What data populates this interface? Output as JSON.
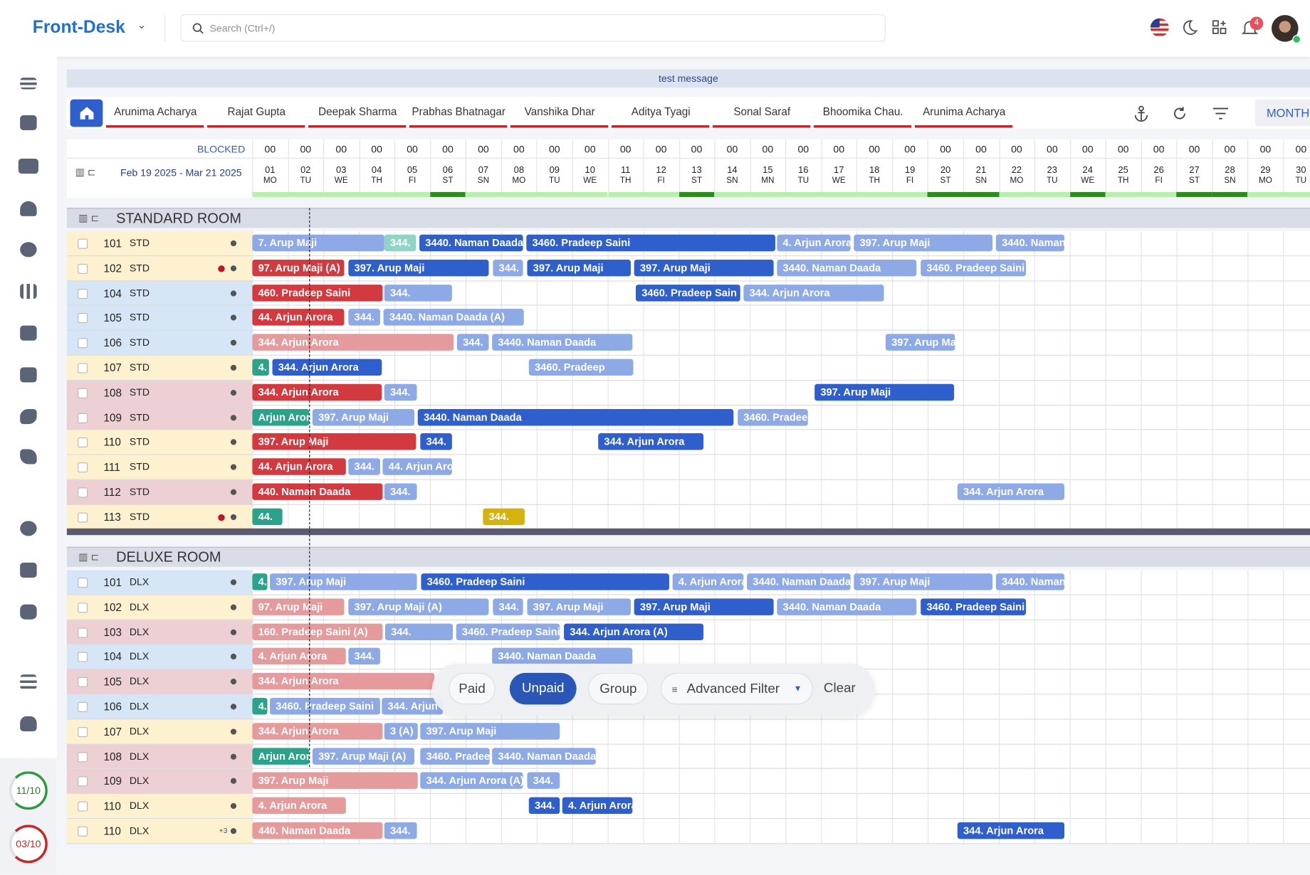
{
  "header": {
    "title": "Front-Desk",
    "search_placeholder": "Search (Ctrl+/)",
    "notifications": "4"
  },
  "message": "test message",
  "tabs": [
    "Arunima Acharya",
    "Rajat Gupta",
    "Deepak Sharma",
    "Prabhas Bhatnagar",
    "Vanshika Dhar",
    "Aditya Tyagi",
    "Sonal Saraf",
    "Bhoomika Chau.",
    "Arunima Acharya"
  ],
  "view_button": "MONTH",
  "calendar": {
    "blocked_label": "BLOCKED",
    "date_range": "Feb 19 2025 - Mar 21 2025",
    "days": [
      {
        "blocked": "00",
        "date": "01",
        "weekday": "MO"
      },
      {
        "blocked": "00",
        "date": "02",
        "weekday": "TU"
      },
      {
        "blocked": "00",
        "date": "03",
        "weekday": "WE"
      },
      {
        "blocked": "00",
        "date": "04",
        "weekday": "TH"
      },
      {
        "blocked": "00",
        "date": "05",
        "weekday": "FI"
      },
      {
        "blocked": "00",
        "date": "06",
        "weekday": "ST"
      },
      {
        "blocked": "00",
        "date": "07",
        "weekday": "SN"
      },
      {
        "blocked": "00",
        "date": "08",
        "weekday": "MO"
      },
      {
        "blocked": "00",
        "date": "09",
        "weekday": "TU"
      },
      {
        "blocked": "00",
        "date": "10",
        "weekday": "WE"
      },
      {
        "blocked": "00",
        "date": "11",
        "weekday": "TH"
      },
      {
        "blocked": "00",
        "date": "12",
        "weekday": "FI"
      },
      {
        "blocked": "00",
        "date": "13",
        "weekday": "ST"
      },
      {
        "blocked": "00",
        "date": "14",
        "weekday": "SN"
      },
      {
        "blocked": "00",
        "date": "15",
        "weekday": "MN"
      },
      {
        "blocked": "00",
        "date": "16",
        "weekday": "TU"
      },
      {
        "blocked": "00",
        "date": "17",
        "weekday": "WE"
      },
      {
        "blocked": "00",
        "date": "18",
        "weekday": "TH"
      },
      {
        "blocked": "00",
        "date": "19",
        "weekday": "FI"
      },
      {
        "blocked": "00",
        "date": "20",
        "weekday": "ST"
      },
      {
        "blocked": "00",
        "date": "21",
        "weekday": "SN"
      },
      {
        "blocked": "00",
        "date": "22",
        "weekday": "MO"
      },
      {
        "blocked": "00",
        "date": "23",
        "weekday": "TU"
      },
      {
        "blocked": "00",
        "date": "24",
        "weekday": "WE"
      },
      {
        "blocked": "00",
        "date": "25",
        "weekday": "TH"
      },
      {
        "blocked": "00",
        "date": "26",
        "weekday": "FI"
      },
      {
        "blocked": "00",
        "date": "27",
        "weekday": "ST"
      },
      {
        "blocked": "00",
        "date": "28",
        "weekday": "SN"
      },
      {
        "blocked": "00",
        "date": "29",
        "weekday": "MO"
      },
      {
        "blocked": "00",
        "date": "30",
        "weekday": "TU"
      }
    ]
  },
  "room_groups": [
    {
      "title": "STANDARD ROOM",
      "rooms": [
        {
          "number": "101",
          "type": "STD",
          "bookings": [
            "7. Arup Maji",
            "344.",
            "3440. Naman Daada",
            "3460. Pradeep Saini",
            "4. Arjun Arora",
            "397. Arup Maji",
            "3440. Naman"
          ]
        },
        {
          "number": "102",
          "type": "STD",
          "bookings": [
            "97. Arup Maji (A)",
            "397. Arup Maji",
            "344.",
            "397. Arup Maji",
            "397. Arup Maji",
            "3440. Naman Daada",
            "3460. Pradeep Saini"
          ]
        },
        {
          "number": "104",
          "type": "STD",
          "bookings": [
            "460. Pradeep Saini",
            "344.",
            "3460. Pradeep Sain",
            "344. Arjun Arora"
          ]
        },
        {
          "number": "105",
          "type": "STD",
          "bookings": [
            "44. Arjun Arora",
            "344.",
            "3440. Naman Daada (A)"
          ]
        },
        {
          "number": "106",
          "type": "STD",
          "bookings": [
            "344. Arjun Arora",
            "344.",
            "3440. Naman Daada",
            "397. Arup Ma"
          ]
        },
        {
          "number": "107",
          "type": "STD",
          "bookings": [
            "4.",
            "344. Arjun Arora",
            "3460. Pradeep"
          ]
        },
        {
          "number": "108",
          "type": "STD",
          "bookings": [
            "344. Arjun Arora",
            "344.",
            "397. Arup Maji"
          ]
        },
        {
          "number": "109",
          "type": "STD",
          "bookings": [
            "Arjun Arora",
            "397. Arup Maji",
            "3440. Naman Daada",
            "3460. Pradee"
          ]
        },
        {
          "number": "110",
          "type": "STD",
          "bookings": [
            "397. Arup Maji",
            "344.",
            "344. Arjun Arora"
          ]
        },
        {
          "number": "111",
          "type": "STD",
          "bookings": [
            "44. Arjun Arora",
            "344.",
            "44. Arjun Arora"
          ]
        },
        {
          "number": "112",
          "type": "STD",
          "bookings": [
            "440. Naman Daada",
            "344.",
            "344. Arjun Arora"
          ]
        },
        {
          "number": "113",
          "type": "STD",
          "bookings": [
            "44.",
            "344."
          ]
        }
      ]
    },
    {
      "title": "DELUXE ROOM",
      "rooms": [
        {
          "number": "101",
          "type": "DLX",
          "bookings": [
            "4.",
            "397. Arup Maji",
            "3460. Pradeep Saini",
            "4. Arjun Arora",
            "3440. Naman Daada",
            "397. Arup Maji",
            "3440. Naman"
          ]
        },
        {
          "number": "102",
          "type": "DLX",
          "bookings": [
            "97. Arup Maji",
            "397. Arup Maji (A)",
            "344.",
            "397. Arup Maji",
            "397. Arup Maji",
            "3440. Naman Daada",
            "3460. Pradeep Saini"
          ]
        },
        {
          "number": "103",
          "type": "DLX",
          "bookings": [
            "160. Pradeep Saini (A)",
            "344.",
            "3460. Pradeep Saini",
            "344. Arjun Arora (A)"
          ]
        },
        {
          "number": "104",
          "type": "DLX",
          "bookings": [
            "4. Arjun Arora",
            "344.",
            "3440. Naman Daada"
          ]
        },
        {
          "number": "105",
          "type": "DLX",
          "bookings": [
            "344. Arjun Arora"
          ]
        },
        {
          "number": "106",
          "type": "DLX",
          "bookings": [
            "4.",
            "3460. Pradeep Saini",
            "344. Arjun"
          ]
        },
        {
          "number": "107",
          "type": "DLX",
          "bookings": [
            "344. Arjun Arora",
            "3 (A)",
            "397. Arup Maji"
          ]
        },
        {
          "number": "108",
          "type": "DLX",
          "bookings": [
            "Arjun Arora",
            "397. Arup Maji (A)",
            "3460. Pradee",
            "3440. Naman Daada"
          ]
        },
        {
          "number": "109",
          "type": "DLX",
          "bookings": [
            "397. Arup Maji",
            "344. Arjun Arora (A)",
            "344."
          ]
        },
        {
          "number": "110",
          "type": "DLX",
          "bookings": [
            "4. Arjun Arora",
            "344.",
            "4. Arjun Arora"
          ]
        },
        {
          "number": "110",
          "type": "DLX",
          "extra": "+3",
          "bookings": [
            "440. Naman Daada",
            "344.",
            "344. Arjun Arora"
          ]
        }
      ]
    }
  ],
  "filters": [
    "Paid",
    "Unpaid",
    "Group",
    "Advanced Filter",
    "Clear"
  ],
  "occupancy": [
    "11/10",
    "03/10"
  ]
}
